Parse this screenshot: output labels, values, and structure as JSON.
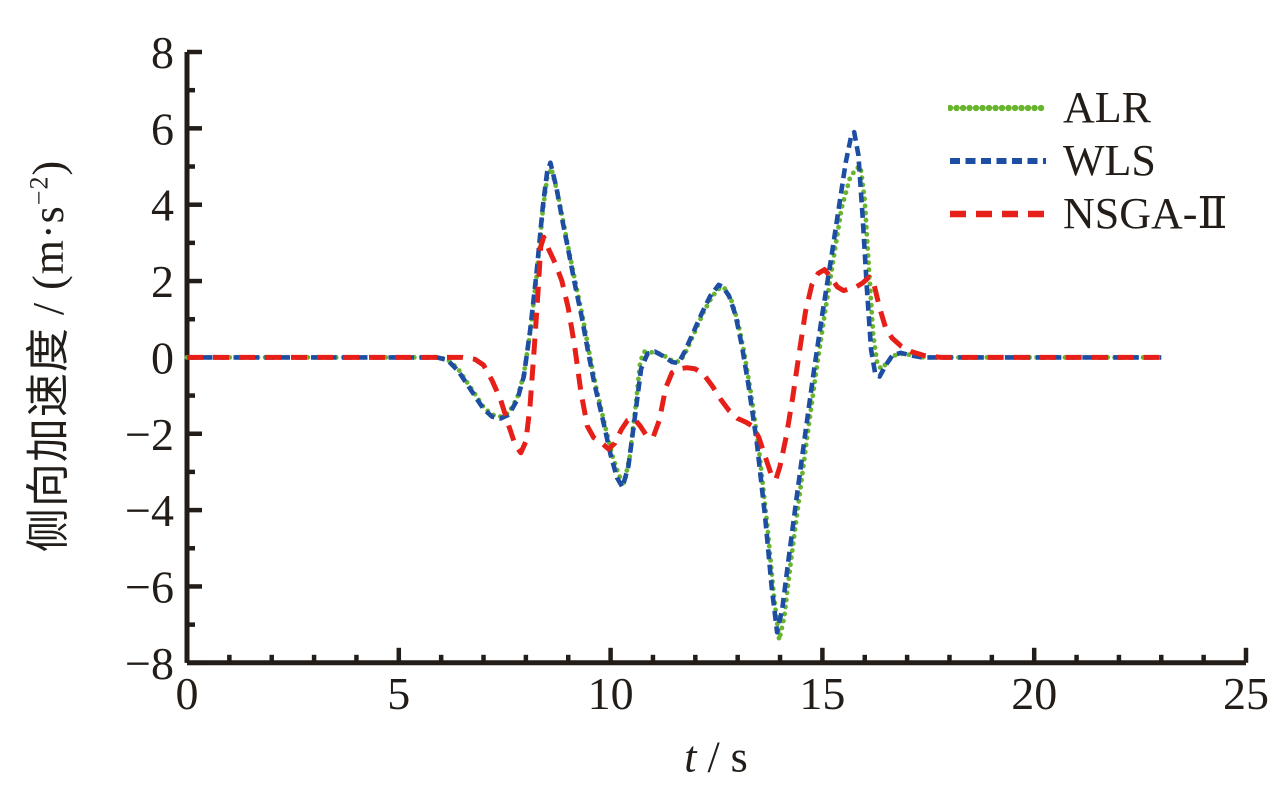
{
  "figure": {
    "background": "#ffffff",
    "axis_color": "#221d18",
    "text_color": "#221d18"
  },
  "chart_data": {
    "type": "line",
    "title": "",
    "xlabel_var": "t",
    "xlabel_rest": " / s",
    "ylabel_prefix": "侧向加速度 / (m·s",
    "ylabel_sup": "−2",
    "ylabel_suffix": ")",
    "xlim": [
      0,
      25
    ],
    "ylim": [
      -8,
      8
    ],
    "x_major_ticks": [
      0,
      5,
      10,
      15,
      20,
      25
    ],
    "x_minor_step": 1,
    "y_major_ticks": [
      -8,
      -6,
      -4,
      -2,
      0,
      2,
      4,
      6,
      8
    ],
    "y_minor_step": 1,
    "grid": false,
    "frame": "left-bottom",
    "tick_direction": "in",
    "legend_position": "top-right-inside",
    "series": [
      {
        "id": "alr",
        "name": "ALR",
        "color": "#69b42d",
        "style": "dotted",
        "points": [
          [
            0,
            0
          ],
          [
            0.5,
            0
          ],
          [
            1,
            0
          ],
          [
            1.5,
            0
          ],
          [
            2,
            0
          ],
          [
            2.5,
            0
          ],
          [
            3,
            0
          ],
          [
            3.5,
            0
          ],
          [
            4,
            0
          ],
          [
            4.5,
            0
          ],
          [
            5,
            0
          ],
          [
            5.5,
            0
          ],
          [
            5.9,
            0
          ],
          [
            6.15,
            -0.05
          ],
          [
            6.4,
            -0.3
          ],
          [
            6.7,
            -0.8
          ],
          [
            7.0,
            -1.3
          ],
          [
            7.2,
            -1.5
          ],
          [
            7.4,
            -1.55
          ],
          [
            7.6,
            -1.45
          ],
          [
            7.8,
            -1.05
          ],
          [
            7.95,
            -0.45
          ],
          [
            8.1,
            0.65
          ],
          [
            8.25,
            2.1
          ],
          [
            8.4,
            3.85
          ],
          [
            8.5,
            4.7
          ],
          [
            8.6,
            4.95
          ],
          [
            8.75,
            4.3
          ],
          [
            8.9,
            3.45
          ],
          [
            9.05,
            2.6
          ],
          [
            9.2,
            1.8
          ],
          [
            9.35,
            1.0
          ],
          [
            9.5,
            0.1
          ],
          [
            9.65,
            -0.75
          ],
          [
            9.85,
            -1.7
          ],
          [
            10.05,
            -2.6
          ],
          [
            10.2,
            -3.1
          ],
          [
            10.32,
            -3.3
          ],
          [
            10.45,
            -2.6
          ],
          [
            10.6,
            -1.2
          ],
          [
            10.7,
            -0.1
          ],
          [
            10.8,
            0.15
          ],
          [
            11.1,
            0.12
          ],
          [
            11.3,
            0.02
          ],
          [
            11.5,
            -0.12
          ],
          [
            11.65,
            -0.1
          ],
          [
            11.8,
            0.2
          ],
          [
            12.0,
            0.7
          ],
          [
            12.2,
            1.2
          ],
          [
            12.4,
            1.6
          ],
          [
            12.6,
            1.85
          ],
          [
            12.7,
            1.8
          ],
          [
            12.85,
            1.5
          ],
          [
            13.0,
            0.95
          ],
          [
            13.15,
            0.15
          ],
          [
            13.3,
            -0.85
          ],
          [
            13.5,
            -2.4
          ],
          [
            13.7,
            -4.4
          ],
          [
            13.85,
            -6.2
          ],
          [
            13.98,
            -7.4
          ],
          [
            14.1,
            -6.8
          ],
          [
            14.25,
            -5.4
          ],
          [
            14.45,
            -3.7
          ],
          [
            14.65,
            -2.0
          ],
          [
            14.85,
            -0.4
          ],
          [
            15.05,
            1.1
          ],
          [
            15.25,
            2.5
          ],
          [
            15.45,
            3.9
          ],
          [
            15.65,
            4.7
          ],
          [
            15.8,
            4.95
          ],
          [
            15.9,
            5.0
          ],
          [
            16.0,
            4.1
          ],
          [
            16.1,
            2.3
          ],
          [
            16.2,
            0.6
          ],
          [
            16.3,
            -0.2
          ],
          [
            16.4,
            -0.3
          ],
          [
            16.55,
            -0.1
          ],
          [
            16.7,
            0.05
          ],
          [
            16.9,
            0.1
          ],
          [
            17.15,
            0.05
          ],
          [
            17.4,
            0
          ],
          [
            17.8,
            0
          ],
          [
            18.3,
            0
          ],
          [
            19,
            0
          ],
          [
            19.5,
            0
          ],
          [
            20,
            0
          ],
          [
            20.5,
            0
          ],
          [
            21,
            0
          ],
          [
            21.5,
            0
          ],
          [
            22,
            0
          ],
          [
            22.5,
            0
          ],
          [
            23,
            0
          ]
        ]
      },
      {
        "id": "wls",
        "name": "WLS",
        "color": "#1e4ea3",
        "style": "short-dash",
        "points": [
          [
            0,
            0
          ],
          [
            0.5,
            0
          ],
          [
            1,
            0
          ],
          [
            1.5,
            0
          ],
          [
            2,
            0
          ],
          [
            2.5,
            0
          ],
          [
            3,
            0
          ],
          [
            3.5,
            0
          ],
          [
            4,
            0
          ],
          [
            4.5,
            0
          ],
          [
            5,
            0
          ],
          [
            5.5,
            0
          ],
          [
            5.9,
            0
          ],
          [
            6.15,
            -0.07
          ],
          [
            6.4,
            -0.35
          ],
          [
            6.7,
            -0.85
          ],
          [
            7.0,
            -1.35
          ],
          [
            7.2,
            -1.55
          ],
          [
            7.4,
            -1.6
          ],
          [
            7.6,
            -1.5
          ],
          [
            7.8,
            -1.1
          ],
          [
            7.95,
            -0.5
          ],
          [
            8.1,
            0.7
          ],
          [
            8.25,
            2.2
          ],
          [
            8.4,
            3.95
          ],
          [
            8.5,
            4.85
          ],
          [
            8.58,
            5.1
          ],
          [
            8.72,
            4.45
          ],
          [
            8.87,
            3.55
          ],
          [
            9.02,
            2.7
          ],
          [
            9.17,
            1.85
          ],
          [
            9.32,
            1.05
          ],
          [
            9.47,
            0.15
          ],
          [
            9.62,
            -0.7
          ],
          [
            9.82,
            -1.65
          ],
          [
            10.0,
            -2.55
          ],
          [
            10.15,
            -3.15
          ],
          [
            10.28,
            -3.4
          ],
          [
            10.42,
            -2.85
          ],
          [
            10.57,
            -1.6
          ],
          [
            10.72,
            -0.3
          ],
          [
            10.87,
            0.1
          ],
          [
            11.05,
            0.15
          ],
          [
            11.25,
            0.03
          ],
          [
            11.45,
            -0.12
          ],
          [
            11.6,
            -0.15
          ],
          [
            11.75,
            0.15
          ],
          [
            11.95,
            0.65
          ],
          [
            12.15,
            1.15
          ],
          [
            12.35,
            1.6
          ],
          [
            12.55,
            1.9
          ],
          [
            12.65,
            1.85
          ],
          [
            12.8,
            1.6
          ],
          [
            12.95,
            1.1
          ],
          [
            13.1,
            0.3
          ],
          [
            13.25,
            -0.7
          ],
          [
            13.45,
            -2.2
          ],
          [
            13.65,
            -4.2
          ],
          [
            13.8,
            -6.0
          ],
          [
            13.93,
            -7.2
          ],
          [
            14.05,
            -6.6
          ],
          [
            14.2,
            -5.3
          ],
          [
            14.4,
            -3.6
          ],
          [
            14.6,
            -1.95
          ],
          [
            14.8,
            -0.35
          ],
          [
            15.0,
            1.15
          ],
          [
            15.2,
            2.55
          ],
          [
            15.4,
            4.0
          ],
          [
            15.55,
            5.1
          ],
          [
            15.68,
            5.8
          ],
          [
            15.75,
            5.9
          ],
          [
            15.85,
            5.3
          ],
          [
            15.95,
            3.7
          ],
          [
            16.05,
            1.8
          ],
          [
            16.15,
            0.2
          ],
          [
            16.25,
            -0.45
          ],
          [
            16.35,
            -0.5
          ],
          [
            16.5,
            -0.2
          ],
          [
            16.65,
            0.05
          ],
          [
            16.85,
            0.12
          ],
          [
            17.1,
            0.05
          ],
          [
            17.35,
            0
          ],
          [
            17.8,
            0
          ],
          [
            18.3,
            0
          ],
          [
            19,
            0
          ],
          [
            19.5,
            0
          ],
          [
            20,
            0
          ],
          [
            20.5,
            0
          ],
          [
            21,
            0
          ],
          [
            21.5,
            0
          ],
          [
            22,
            0
          ],
          [
            22.5,
            0
          ],
          [
            23,
            0
          ]
        ]
      },
      {
        "id": "nsga2",
        "name": "NSGA-Ⅱ",
        "color": "#e71f19",
        "style": "long-dash",
        "points": [
          [
            0,
            0
          ],
          [
            0.5,
            0
          ],
          [
            1,
            0
          ],
          [
            1.5,
            0
          ],
          [
            2,
            0
          ],
          [
            2.5,
            0
          ],
          [
            3,
            0
          ],
          [
            3.5,
            0
          ],
          [
            4,
            0
          ],
          [
            4.5,
            0
          ],
          [
            5,
            0
          ],
          [
            5.5,
            0
          ],
          [
            6,
            0
          ],
          [
            6.5,
            0
          ],
          [
            6.8,
            -0.05
          ],
          [
            7.0,
            -0.2
          ],
          [
            7.2,
            -0.6
          ],
          [
            7.4,
            -1.1
          ],
          [
            7.6,
            -1.8
          ],
          [
            7.75,
            -2.3
          ],
          [
            7.88,
            -2.5
          ],
          [
            8.0,
            -2.2
          ],
          [
            8.1,
            -1.25
          ],
          [
            8.2,
            0.3
          ],
          [
            8.3,
            1.95
          ],
          [
            8.35,
            2.9
          ],
          [
            8.42,
            3.15
          ],
          [
            8.55,
            2.8
          ],
          [
            8.7,
            2.45
          ],
          [
            8.85,
            2.0
          ],
          [
            9.0,
            1.3
          ],
          [
            9.15,
            0.3
          ],
          [
            9.3,
            -0.9
          ],
          [
            9.45,
            -1.8
          ],
          [
            9.6,
            -2.1
          ],
          [
            9.8,
            -2.25
          ],
          [
            9.95,
            -2.4
          ],
          [
            10.1,
            -2.25
          ],
          [
            10.25,
            -1.9
          ],
          [
            10.4,
            -1.65
          ],
          [
            10.55,
            -1.6
          ],
          [
            10.7,
            -1.8
          ],
          [
            10.85,
            -2.05
          ],
          [
            11.0,
            -2.1
          ],
          [
            11.15,
            -1.65
          ],
          [
            11.3,
            -0.8
          ],
          [
            11.45,
            -0.4
          ],
          [
            11.6,
            -0.3
          ],
          [
            11.8,
            -0.27
          ],
          [
            12.0,
            -0.3
          ],
          [
            12.2,
            -0.45
          ],
          [
            12.4,
            -0.75
          ],
          [
            12.6,
            -1.1
          ],
          [
            12.8,
            -1.4
          ],
          [
            13.0,
            -1.6
          ],
          [
            13.2,
            -1.7
          ],
          [
            13.35,
            -1.8
          ],
          [
            13.5,
            -2.1
          ],
          [
            13.65,
            -2.6
          ],
          [
            13.8,
            -3.1
          ],
          [
            13.9,
            -3.2
          ],
          [
            14.0,
            -2.85
          ],
          [
            14.15,
            -2.05
          ],
          [
            14.3,
            -1.05
          ],
          [
            14.45,
            0.1
          ],
          [
            14.6,
            1.2
          ],
          [
            14.75,
            1.9
          ],
          [
            14.9,
            2.2
          ],
          [
            15.05,
            2.3
          ],
          [
            15.2,
            2.1
          ],
          [
            15.35,
            1.85
          ],
          [
            15.5,
            1.75
          ],
          [
            15.65,
            1.8
          ],
          [
            15.8,
            1.85
          ],
          [
            15.95,
            1.95
          ],
          [
            16.1,
            2.1
          ],
          [
            16.22,
            1.9
          ],
          [
            16.35,
            1.3
          ],
          [
            16.5,
            0.75
          ],
          [
            16.65,
            0.5
          ],
          [
            16.85,
            0.3
          ],
          [
            17.1,
            0.15
          ],
          [
            17.4,
            0.05
          ],
          [
            17.8,
            0
          ],
          [
            18.3,
            0
          ],
          [
            19,
            0
          ],
          [
            19.5,
            0
          ],
          [
            20,
            0
          ],
          [
            20.5,
            0
          ],
          [
            21,
            0
          ],
          [
            21.5,
            0
          ],
          [
            22,
            0
          ],
          [
            22.5,
            0
          ],
          [
            23,
            0
          ]
        ]
      }
    ]
  }
}
